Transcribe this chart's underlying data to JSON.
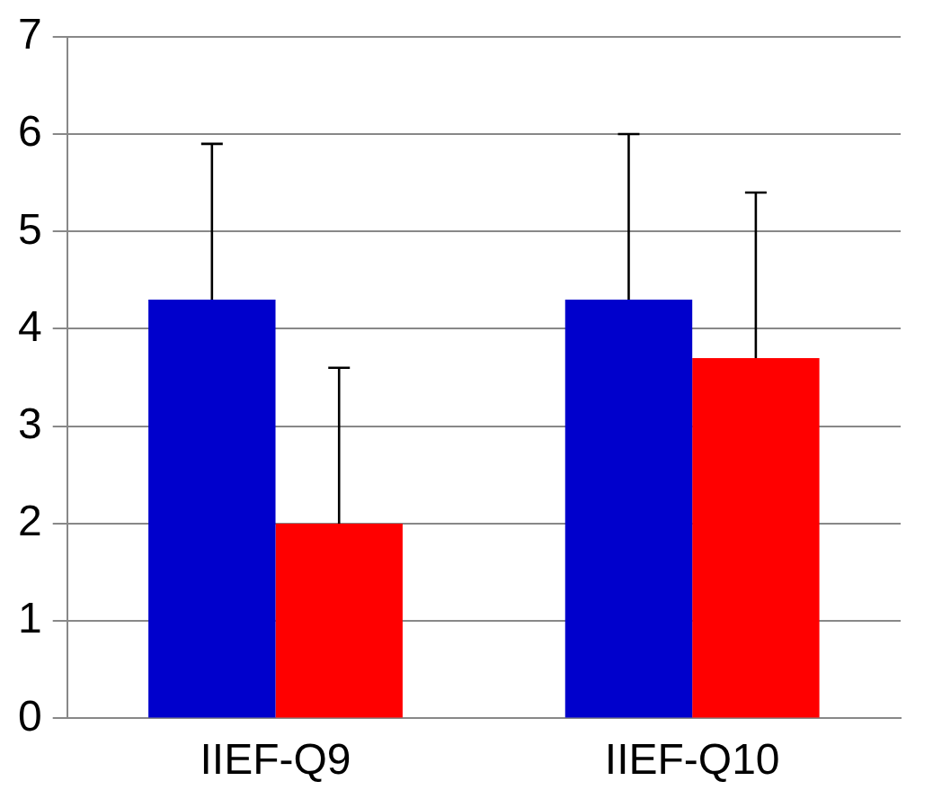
{
  "chart_data": {
    "type": "bar",
    "categories": [
      "IIEF-Q9",
      "IIEF-Q10"
    ],
    "series": [
      {
        "color": "#0000cc",
        "values": [
          4.3,
          4.3
        ],
        "errors": [
          [
            4.3,
            5.9
          ],
          [
            4.3,
            6.0
          ]
        ]
      },
      {
        "color": "#ff0000",
        "values": [
          2.0,
          3.7
        ],
        "errors": [
          [
            2.0,
            3.6
          ],
          [
            3.7,
            5.4
          ]
        ]
      }
    ],
    "ylim": [
      0,
      7
    ],
    "yticks": [
      0,
      1,
      2,
      3,
      4,
      5,
      6,
      7
    ],
    "grid": "y",
    "legend": false
  }
}
